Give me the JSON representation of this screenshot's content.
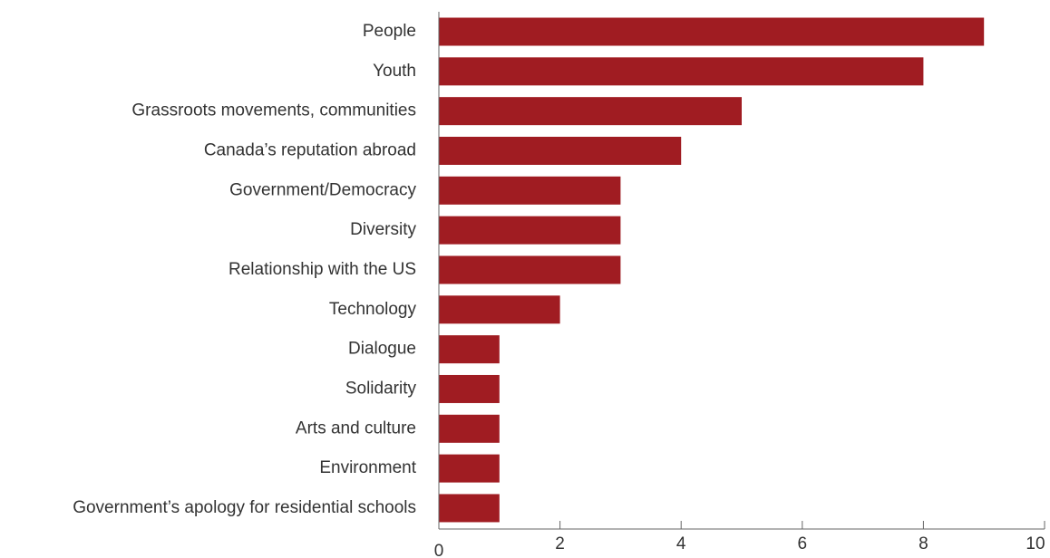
{
  "chart_data": {
    "type": "bar",
    "orientation": "horizontal",
    "title": "",
    "xlabel": "",
    "ylabel": "",
    "categories": [
      "People",
      "Youth",
      "Grassroots movements, communities",
      "Canada’s reputation abroad",
      "Government/Democracy",
      "Diversity",
      "Relationship with the US",
      "Technology",
      "Dialogue",
      "Solidarity",
      "Arts and culture",
      "Environment",
      "Government’s apology for residential schools"
    ],
    "values": [
      9,
      8,
      5,
      4,
      3,
      3,
      3,
      2,
      1,
      1,
      1,
      1,
      1
    ],
    "xlim": [
      0,
      10
    ],
    "xticks": [
      "0",
      "2",
      "4",
      "6",
      "8",
      "10"
    ],
    "grid": false,
    "colors": {
      "bar": "#a01c22",
      "axis": "#666666",
      "text": "#333333"
    }
  }
}
